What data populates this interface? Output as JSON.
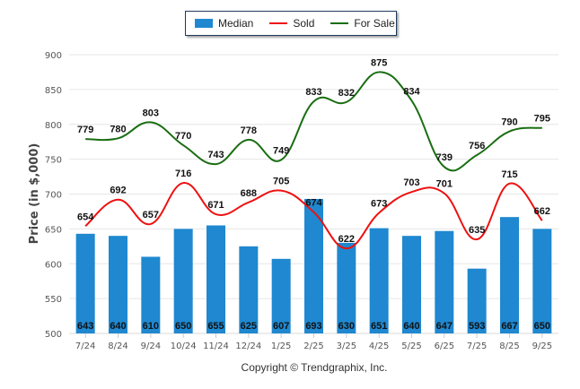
{
  "legend": {
    "median": "Median",
    "sold": "Sold",
    "for_sale": "For Sale"
  },
  "copyright": "Copyright © Trendgraphix, Inc.",
  "colors": {
    "median": "#1f88d0",
    "sold": "#ee1111",
    "for_sale": "#1a6e12"
  },
  "chart_data": {
    "type": "bar",
    "title": "",
    "xlabel": "",
    "ylabel": "Price (in $,000)",
    "ylim": [
      500,
      900
    ],
    "yticks": [
      500,
      550,
      600,
      650,
      700,
      750,
      800,
      850,
      900
    ],
    "grid": true,
    "legend_position": "top-center",
    "categories": [
      "7/24",
      "8/24",
      "9/24",
      "10/24",
      "11/24",
      "12/24",
      "1/25",
      "2/25",
      "3/25",
      "4/25",
      "5/25",
      "6/25",
      "7/25",
      "8/25",
      "9/25"
    ],
    "series": [
      {
        "name": "Median",
        "type": "bar",
        "values": [
          643,
          640,
          610,
          650,
          655,
          625,
          607,
          693,
          630,
          651,
          640,
          647,
          593,
          667,
          650
        ]
      },
      {
        "name": "Sold",
        "type": "line",
        "values": [
          654,
          692,
          657,
          716,
          671,
          688,
          705,
          674,
          622,
          673,
          703,
          701,
          635,
          715,
          662
        ]
      },
      {
        "name": "For Sale",
        "type": "line",
        "values": [
          779,
          780,
          803,
          770,
          743,
          778,
          749,
          833,
          832,
          875,
          834,
          739,
          756,
          790,
          795
        ]
      }
    ]
  }
}
